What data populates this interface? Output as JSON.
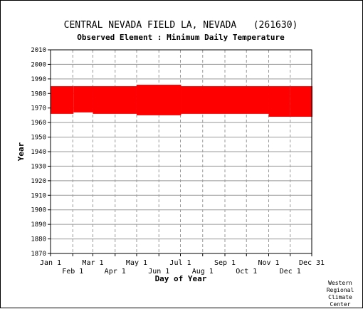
{
  "chart_data": {
    "type": "heatmap",
    "title": "CENTRAL NEVADA FIELD LA, NEVADA   (261630)",
    "subtitle": "Observed Element : Minimum Daily Temperature",
    "xlabel": "Day of Year",
    "ylabel": "Year",
    "ylim": [
      1870,
      2010
    ],
    "y_ticks": [
      1870,
      1880,
      1890,
      1900,
      1910,
      1920,
      1930,
      1940,
      1950,
      1960,
      1970,
      1980,
      1990,
      2000,
      2010
    ],
    "x_ticks_top": [
      {
        "label": "Jan 1",
        "day": 1
      },
      {
        "label": "Mar 1",
        "day": 60
      },
      {
        "label": "May 1",
        "day": 121
      },
      {
        "label": "Jul 1",
        "day": 182
      },
      {
        "label": "Sep 1",
        "day": 244
      },
      {
        "label": "Nov 1",
        "day": 305
      },
      {
        "label": "Dec 31",
        "day": 365
      }
    ],
    "x_ticks_bottom": [
      {
        "label": "Feb 1",
        "day": 32
      },
      {
        "label": "Apr 1",
        "day": 91
      },
      {
        "label": "Jun 1",
        "day": 152
      },
      {
        "label": "Aug 1",
        "day": 213
      },
      {
        "label": "Oct 1",
        "day": 274
      },
      {
        "label": "Dec 1",
        "day": 335
      }
    ],
    "grid": true,
    "series_color": "#ff0000",
    "data_blocks": [
      {
        "day_start": 1,
        "day_end": 32,
        "year_start": 1966,
        "year_end": 1984
      },
      {
        "day_start": 33,
        "day_end": 59,
        "year_start": 1967,
        "year_end": 1984
      },
      {
        "day_start": 60,
        "day_end": 120,
        "year_start": 1966,
        "year_end": 1984
      },
      {
        "day_start": 121,
        "day_end": 182,
        "year_start": 1965,
        "year_end": 1985
      },
      {
        "day_start": 183,
        "day_end": 304,
        "year_start": 1966,
        "year_end": 1984
      },
      {
        "day_start": 305,
        "day_end": 334,
        "year_start": 1964,
        "year_end": 1984
      },
      {
        "day_start": 335,
        "day_end": 365,
        "year_start": 1964,
        "year_end": 1984
      }
    ]
  },
  "credit": [
    "Western",
    "Regional",
    "Climate",
    "Center"
  ]
}
